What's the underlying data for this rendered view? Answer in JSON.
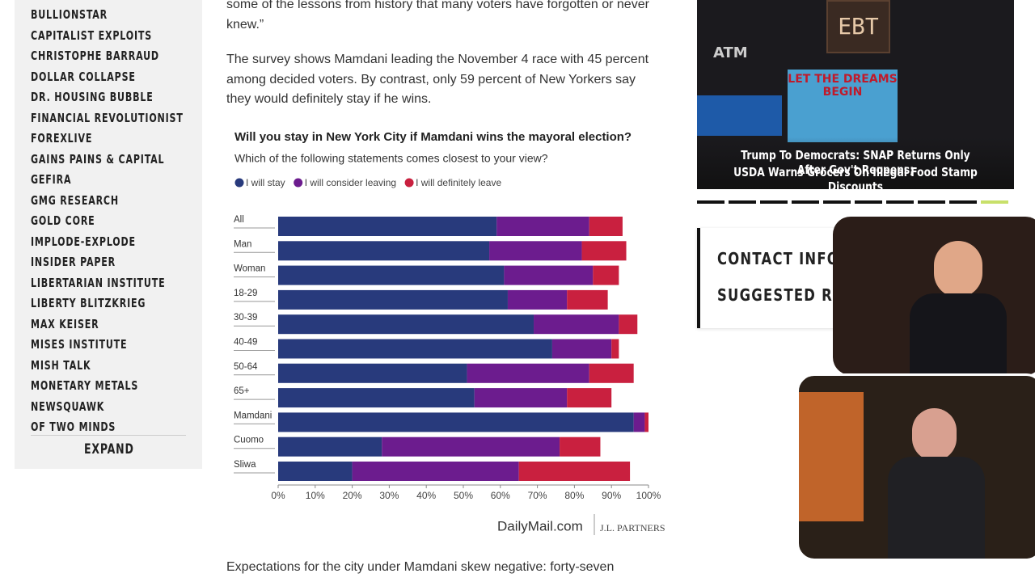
{
  "sidebar": {
    "links": [
      "BULLIONSTAR",
      "CAPITALIST EXPLOITS",
      "CHRISTOPHE BARRAUD",
      "DOLLAR COLLAPSE",
      "DR. HOUSING BUBBLE",
      "FINANCIAL REVOLUTIONIST",
      "FOREXLIVE",
      "GAINS PAINS & CAPITAL",
      "GEFIRA",
      "GMG RESEARCH",
      "GOLD CORE",
      "IMPLODE-EXPLODE",
      "INSIDER PAPER",
      "LIBERTARIAN INSTITUTE",
      "LIBERTY BLITZKRIEG",
      "MAX KEISER",
      "MISES INSTITUTE",
      "MISH TALK",
      "MONETARY METALS",
      "NEWSQUAWK",
      "OF TWO MINDS"
    ],
    "expand": "EXPAND"
  },
  "article": {
    "paragraphs": [
      "some of the lessons from history that many voters have forgotten or never knew.”",
      "The survey shows Mamdani leading the November 4 race with 45 percent among decided voters. By contrast, only 59 percent of New Yorkers say they would definitely stay if he wins.",
      "Expectations for the city under Mamdani skew negative: forty-seven"
    ]
  },
  "chart_data": {
    "type": "bar",
    "orientation": "horizontal",
    "stacked": true,
    "title": "Will you stay in New York City if Mamdani wins the mayoral election?",
    "subtitle": "Which of the following statements comes closest to your view?",
    "categories": [
      "All",
      "Man",
      "Woman",
      "18-29",
      "30-39",
      "40-49",
      "50-64",
      "65+",
      "Mamdani",
      "Cuomo",
      "Sliwa"
    ],
    "series": [
      {
        "name": "I will stay",
        "color": "#283a7c",
        "values": [
          59,
          57,
          61,
          62,
          69,
          74,
          51,
          53,
          96,
          28,
          20
        ]
      },
      {
        "name": "I will consider leaving",
        "color": "#6c1c8e",
        "values": [
          25,
          25,
          24,
          16,
          23,
          16,
          33,
          25,
          3,
          48,
          45
        ]
      },
      {
        "name": "I will definitely leave",
        "color": "#c9203f",
        "values": [
          9,
          12,
          7,
          11,
          5,
          2,
          12,
          12,
          1,
          11,
          30
        ]
      }
    ],
    "xlim": [
      0,
      100
    ],
    "xticks": [
      {
        "value": 0,
        "label": "0%"
      },
      {
        "value": 10,
        "label": "10%"
      },
      {
        "value": 20,
        "label": "20%"
      },
      {
        "value": 30,
        "label": "30%"
      },
      {
        "value": 40,
        "label": "40%"
      },
      {
        "value": 50,
        "label": "50%"
      },
      {
        "value": 60,
        "label": "60%"
      },
      {
        "value": 70,
        "label": "70%"
      },
      {
        "value": 80,
        "label": "80%"
      },
      {
        "value": 90,
        "label": "90%"
      },
      {
        "value": 100,
        "label": "100%"
      }
    ],
    "source": "DailyMail.com",
    "partner": "J.L. PARTNERS"
  },
  "right": {
    "image_texts": [
      "EBT",
      "ATM",
      "LET THE DREAMS BEGIN"
    ],
    "caption": [
      "Trump To Democrats: SNAP Returns Only After Gov't Reopens;",
      "USDA Warns Grocers On Illegal Food Stamp Discounts"
    ],
    "widget": [
      "CONTACT INFOR",
      "SUGGESTED REA"
    ]
  }
}
